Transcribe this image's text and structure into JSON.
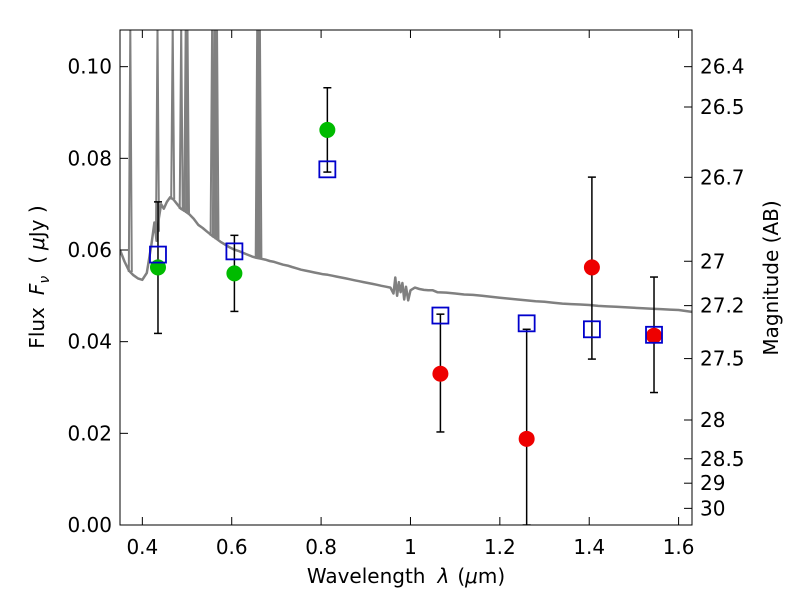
{
  "chart_data": {
    "type": "scatter",
    "xlabel": "Wavelength",
    "xlabel_symbol": "λ",
    "xlabel_unit_open": "(",
    "xlabel_unit": "μ",
    "xlabel_unit_rest": "m)",
    "ylabel_prefix": "Flux",
    "ylabel_symbol": "F",
    "ylabel_subscript": "ν",
    "ylabel_unit_open": "(",
    "ylabel_unit": "μ",
    "ylabel_unit_rest": "Jy )",
    "y2label": "Magnitude (AB)",
    "xlim": [
      0.35,
      1.63
    ],
    "ylim": [
      0.0,
      0.108
    ],
    "x_ticks": [
      {
        "value": 0.4,
        "label": "0.4"
      },
      {
        "value": 0.6,
        "label": "0.6"
      },
      {
        "value": 0.8,
        "label": "0.8"
      },
      {
        "value": 1.0,
        "label": "1"
      },
      {
        "value": 1.2,
        "label": "1.2"
      },
      {
        "value": 1.4,
        "label": "1.4"
      },
      {
        "value": 1.6,
        "label": "1.6"
      }
    ],
    "y_ticks": [
      {
        "value": 0.0,
        "label": "0.00"
      },
      {
        "value": 0.02,
        "label": "0.02"
      },
      {
        "value": 0.04,
        "label": "0.04"
      },
      {
        "value": 0.06,
        "label": "0.06"
      },
      {
        "value": 0.08,
        "label": "0.08"
      },
      {
        "value": 0.1,
        "label": "0.10"
      }
    ],
    "y2_ticks": [
      {
        "value": 26.4,
        "label": "26.4"
      },
      {
        "value": 26.5,
        "label": "26.5"
      },
      {
        "value": 26.7,
        "label": "26.7"
      },
      {
        "value": 27.0,
        "label": "27"
      },
      {
        "value": 27.2,
        "label": "27.2"
      },
      {
        "value": 27.5,
        "label": "27.5"
      },
      {
        "value": 28.0,
        "label": "28"
      },
      {
        "value": 28.5,
        "label": "28.5"
      },
      {
        "value": 29.0,
        "label": "29"
      },
      {
        "value": 30.0,
        "label": "30"
      }
    ],
    "series": [
      {
        "kind": "points",
        "marker": "circle",
        "color": "#00bb00",
        "points": [
          {
            "x": 0.435,
            "y": 0.0562
          },
          {
            "x": 0.606,
            "y": 0.0549
          },
          {
            "x": 0.814,
            "y": 0.0862
          }
        ]
      },
      {
        "kind": "points",
        "marker": "circle",
        "color": "#ee0000",
        "points": [
          {
            "x": 1.067,
            "y": 0.033
          },
          {
            "x": 1.26,
            "y": 0.0188
          },
          {
            "x": 1.406,
            "y": 0.0562
          },
          {
            "x": 1.545,
            "y": 0.0413
          }
        ]
      },
      {
        "kind": "points",
        "marker": "open-square",
        "color": "#0000cc",
        "points": [
          {
            "x": 0.435,
            "y": 0.059
          },
          {
            "x": 0.606,
            "y": 0.0597
          },
          {
            "x": 0.814,
            "y": 0.0776
          },
          {
            "x": 1.067,
            "y": 0.0457
          },
          {
            "x": 1.26,
            "y": 0.044
          },
          {
            "x": 1.406,
            "y": 0.0427
          },
          {
            "x": 1.545,
            "y": 0.0415
          }
        ]
      }
    ],
    "error_bars": [
      {
        "x": 0.435,
        "low": 0.0418,
        "high": 0.0705
      },
      {
        "x": 0.606,
        "low": 0.0466,
        "high": 0.0632
      },
      {
        "x": 0.814,
        "low": 0.077,
        "high": 0.0954
      },
      {
        "x": 1.067,
        "low": 0.0203,
        "high": 0.046
      },
      {
        "x": 1.26,
        "low": 0.0,
        "high": 0.0427
      },
      {
        "x": 1.406,
        "low": 0.0362,
        "high": 0.0759
      },
      {
        "x": 1.545,
        "low": 0.0289,
        "high": 0.0541
      }
    ],
    "error_bar_color": "#000000",
    "model_color": "#808080",
    "model_spectrum": [
      [
        0.35,
        0.06
      ],
      [
        0.36,
        0.0575
      ],
      [
        0.37,
        0.0555
      ],
      [
        0.38,
        0.0545
      ],
      [
        0.39,
        0.0538
      ],
      [
        0.4,
        0.0535
      ],
      [
        0.41,
        0.055
      ],
      [
        0.42,
        0.061
      ],
      [
        0.427,
        0.066
      ],
      [
        0.432,
        0.062
      ],
      [
        0.437,
        0.067
      ],
      [
        0.442,
        0.07
      ],
      [
        0.448,
        0.069
      ],
      [
        0.455,
        0.0705
      ],
      [
        0.462,
        0.0715
      ],
      [
        0.47,
        0.071
      ],
      [
        0.478,
        0.07
      ],
      [
        0.486,
        0.069
      ],
      [
        0.495,
        0.0685
      ],
      [
        0.505,
        0.0678
      ],
      [
        0.515,
        0.0668
      ],
      [
        0.525,
        0.0655
      ],
      [
        0.535,
        0.0648
      ],
      [
        0.545,
        0.064
      ],
      [
        0.555,
        0.0632
      ],
      [
        0.565,
        0.0625
      ],
      [
        0.575,
        0.0618
      ],
      [
        0.585,
        0.0612
      ],
      [
        0.595,
        0.0606
      ],
      [
        0.605,
        0.0601
      ],
      [
        0.615,
        0.0598
      ],
      [
        0.625,
        0.0594
      ],
      [
        0.635,
        0.059
      ],
      [
        0.645,
        0.0586
      ],
      [
        0.655,
        0.0583
      ],
      [
        0.665,
        0.0581
      ],
      [
        0.675,
        0.0579
      ],
      [
        0.685,
        0.0576
      ],
      [
        0.695,
        0.0574
      ],
      [
        0.705,
        0.0571
      ],
      [
        0.715,
        0.0568
      ],
      [
        0.725,
        0.0566
      ],
      [
        0.735,
        0.0563
      ],
      [
        0.745,
        0.056
      ],
      [
        0.755,
        0.0557
      ],
      [
        0.765,
        0.0555
      ],
      [
        0.775,
        0.0553
      ],
      [
        0.785,
        0.0551
      ],
      [
        0.795,
        0.0549
      ],
      [
        0.805,
        0.0547
      ],
      [
        0.815,
        0.0546
      ],
      [
        0.825,
        0.0544
      ],
      [
        0.835,
        0.0542
      ],
      [
        0.845,
        0.054
      ],
      [
        0.855,
        0.0538
      ],
      [
        0.865,
        0.0536
      ],
      [
        0.875,
        0.0534
      ],
      [
        0.885,
        0.0532
      ],
      [
        0.895,
        0.053
      ],
      [
        0.905,
        0.0528
      ],
      [
        0.915,
        0.0526
      ],
      [
        0.925,
        0.0524
      ],
      [
        0.935,
        0.0522
      ],
      [
        0.945,
        0.052
      ],
      [
        0.955,
        0.0518
      ],
      [
        0.962,
        0.0505
      ],
      [
        0.966,
        0.054
      ],
      [
        0.97,
        0.05
      ],
      [
        0.974,
        0.053
      ],
      [
        0.978,
        0.0508
      ],
      [
        0.982,
        0.0528
      ],
      [
        0.986,
        0.0492
      ],
      [
        0.99,
        0.052
      ],
      [
        0.995,
        0.049
      ],
      [
        1.0,
        0.0512
      ],
      [
        1.01,
        0.0518
      ],
      [
        1.02,
        0.0515
      ],
      [
        1.03,
        0.0513
      ],
      [
        1.04,
        0.0512
      ],
      [
        1.05,
        0.0512
      ],
      [
        1.06,
        0.0508
      ],
      [
        1.08,
        0.0507
      ],
      [
        1.1,
        0.0505
      ],
      [
        1.12,
        0.0503
      ],
      [
        1.14,
        0.0502
      ],
      [
        1.16,
        0.05
      ],
      [
        1.18,
        0.0498
      ],
      [
        1.2,
        0.0496
      ],
      [
        1.22,
        0.0494
      ],
      [
        1.24,
        0.0492
      ],
      [
        1.26,
        0.049
      ],
      [
        1.28,
        0.0488
      ],
      [
        1.3,
        0.0487
      ],
      [
        1.32,
        0.0485
      ],
      [
        1.34,
        0.0483
      ],
      [
        1.36,
        0.0482
      ],
      [
        1.38,
        0.0481
      ],
      [
        1.4,
        0.048
      ],
      [
        1.42,
        0.0478
      ],
      [
        1.44,
        0.0477
      ],
      [
        1.46,
        0.0476
      ],
      [
        1.48,
        0.0475
      ],
      [
        1.5,
        0.0474
      ],
      [
        1.52,
        0.0473
      ],
      [
        1.54,
        0.0472
      ],
      [
        1.56,
        0.0471
      ],
      [
        1.58,
        0.047
      ],
      [
        1.6,
        0.0469
      ],
      [
        1.63,
        0.0465
      ]
    ],
    "emission_lines": [
      0.373,
      0.434,
      0.468,
      0.487,
      0.497,
      0.501,
      0.556,
      0.561,
      0.563,
      0.567,
      0.657,
      0.659,
      0.663
    ]
  }
}
